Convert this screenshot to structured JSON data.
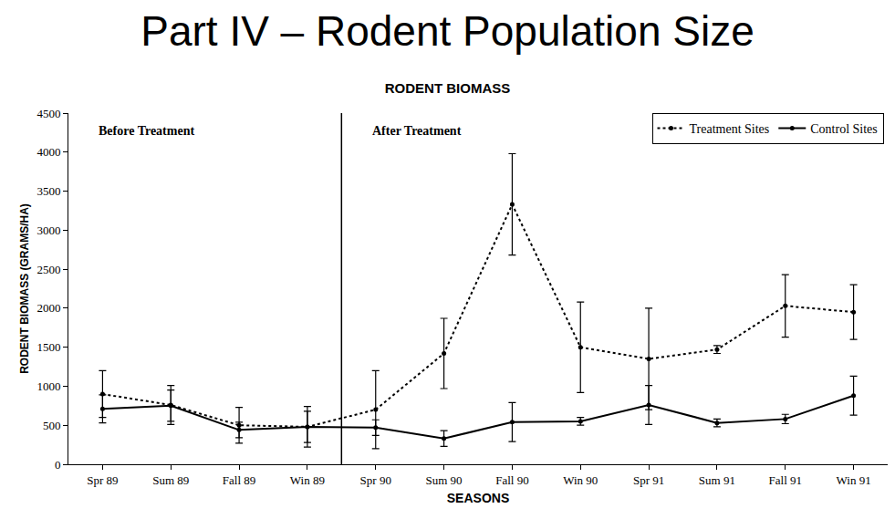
{
  "slide_title": "Part IV – Rodent Population Size",
  "chart_data": {
    "type": "line",
    "title": "RODENT BIOMASS",
    "x_label": "SEASONS",
    "y_label": "RODENT BIOMASS (GRAMS/HA)",
    "categories": [
      "Spr 89",
      "Sum 89",
      "Fall 89",
      "Win 89",
      "Spr 90",
      "Sum 90",
      "Fall 90",
      "Win 90",
      "Spr 91",
      "Sum 91",
      "Fall 91",
      "Win 91"
    ],
    "series": [
      {
        "name": "Treatment Sites",
        "color": "#000000",
        "line_style": "dot",
        "marker": "circle",
        "values": [
          900,
          760,
          500,
          480,
          700,
          1420,
          3330,
          1500,
          1350,
          1470,
          2030,
          1950
        ],
        "errors": [
          300,
          250,
          230,
          260,
          500,
          450,
          650,
          580,
          650,
          50,
          400,
          350
        ]
      },
      {
        "name": "Control Sites",
        "color": "#000000",
        "line_style": "solid",
        "marker": "circle",
        "values": [
          710,
          750,
          440,
          480,
          470,
          330,
          540,
          550,
          760,
          530,
          580,
          880
        ],
        "errors": [
          180,
          200,
          100,
          200,
          100,
          100,
          250,
          50,
          250,
          50,
          60,
          250
        ]
      }
    ],
    "annotations": [
      {
        "text": "Before Treatment",
        "x": "Spr 89"
      },
      {
        "text": "After Treatment",
        "x": "Spr 90"
      }
    ],
    "ylim": [
      0,
      4500
    ],
    "yticks": [
      0,
      500,
      1000,
      1500,
      2000,
      2500,
      3000,
      3500,
      4000,
      4500
    ],
    "legend": "top right",
    "grid": false
  }
}
